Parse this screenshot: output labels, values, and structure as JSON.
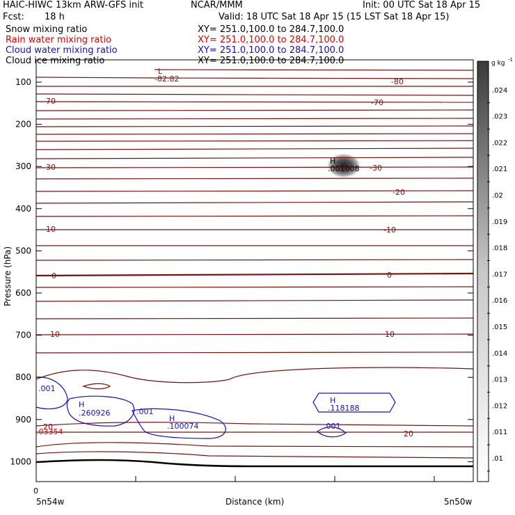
{
  "header": {
    "title": "HAIC-HIWC 13km ARW-GFS init",
    "org": "NCAR/MMM",
    "init": "Init: 00 UTC Sat 18 Apr 15",
    "fcst_label": "Fcst:",
    "fcst_value": "18 h",
    "valid": "Valid: 18 UTC Sat 18 Apr 15 (15 LST Sat 18 Apr 15)"
  },
  "fields": [
    {
      "name": "Snow mixing ratio",
      "xy": "XY= 251.0,100.0 to 284.7,100.0",
      "color": "#000000"
    },
    {
      "name": "Rain water mixing ratio",
      "xy": "XY= 251.0,100.0 to 284.7,100.0",
      "color": "#e00000"
    },
    {
      "name": "Cloud water mixing ratio",
      "xy": "XY= 251.0,100.0 to 284.7,100.0",
      "color": "#1010d0"
    },
    {
      "name": "Cloud ice mixing ratio",
      "xy": "XY= 251.0,100.0 to 284.7,100.0",
      "color": "#000000"
    }
  ],
  "chart_data": {
    "type": "cross-section",
    "ylabel": "Pressure (hPa)",
    "xlabel": "Distance (km)",
    "x_tick_zero": "0",
    "x_left_label": "5n54w",
    "x_right_label": "5n50w",
    "y_ticks": [
      100,
      200,
      300,
      400,
      500,
      600,
      700,
      800,
      900,
      1000
    ],
    "temperature_labels": [
      "-80",
      "-70",
      "-70",
      "-30",
      "-30",
      "-20",
      "-10",
      "-10",
      "0",
      "0",
      "10",
      "10",
      "20",
      "20"
    ],
    "extrema": [
      {
        "type": "L",
        "value": "-82.82"
      },
      {
        "type": "H",
        "value": ".001008"
      },
      {
        "type": "H",
        "value": ".260926"
      },
      {
        "type": "H",
        "value": ".100074"
      },
      {
        "type": "H",
        "value": ".118188"
      }
    ],
    "cloud_water_labels": [
      ".001",
      ".001",
      ".001"
    ],
    "rain_label": ".03354",
    "colorbar": {
      "unit": "g kg",
      "unit_exp": "-1",
      "ticks": [
        ".01",
        ".011",
        ".012",
        ".013",
        ".014",
        ".015",
        ".016",
        ".017",
        ".018",
        ".019",
        ".02",
        ".021",
        ".022",
        ".023",
        ".024"
      ]
    }
  }
}
